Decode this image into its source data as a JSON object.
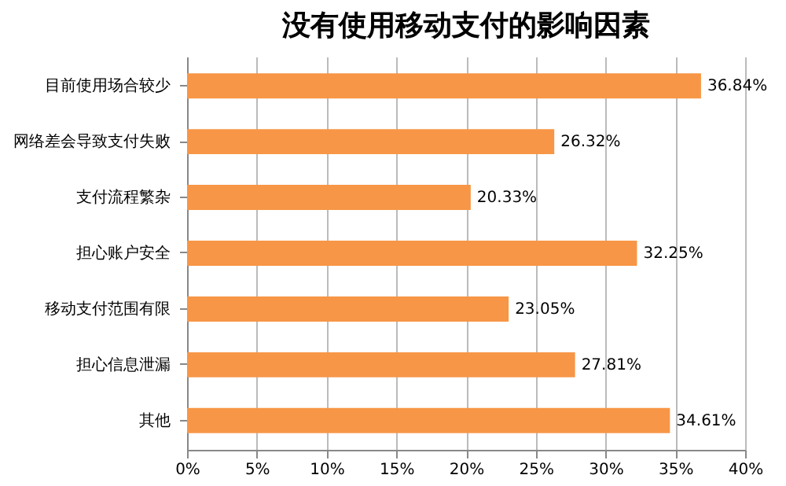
{
  "chart_data": {
    "type": "bar",
    "orientation": "horizontal",
    "title": "没有使用移动支付的影响因素",
    "categories": [
      "目前使用场合较少",
      "网络差会导致支付失败",
      "支付流程繁杂",
      "担心账户安全",
      "移动支付范围有限",
      "担心信息泄漏",
      "其他"
    ],
    "values": [
      36.84,
      26.32,
      20.33,
      32.25,
      23.05,
      27.81,
      34.61
    ],
    "value_labels": [
      "36.84%",
      "26.32%",
      "20.33%",
      "32.25%",
      "23.05%",
      "27.81%",
      "34.61%"
    ],
    "color": "#f79646",
    "xlim": [
      0,
      40
    ],
    "xticks": [
      {
        "value": 0,
        "label": "0%"
      },
      {
        "value": 5,
        "label": "5%"
      },
      {
        "value": 10,
        "label": "10%"
      },
      {
        "value": 15,
        "label": "15%"
      },
      {
        "value": 20,
        "label": "20%"
      },
      {
        "value": 25,
        "label": "25%"
      },
      {
        "value": 30,
        "label": "30%"
      },
      {
        "value": 35,
        "label": "35%"
      },
      {
        "value": 40,
        "label": "40%"
      }
    ],
    "grid": "x"
  }
}
